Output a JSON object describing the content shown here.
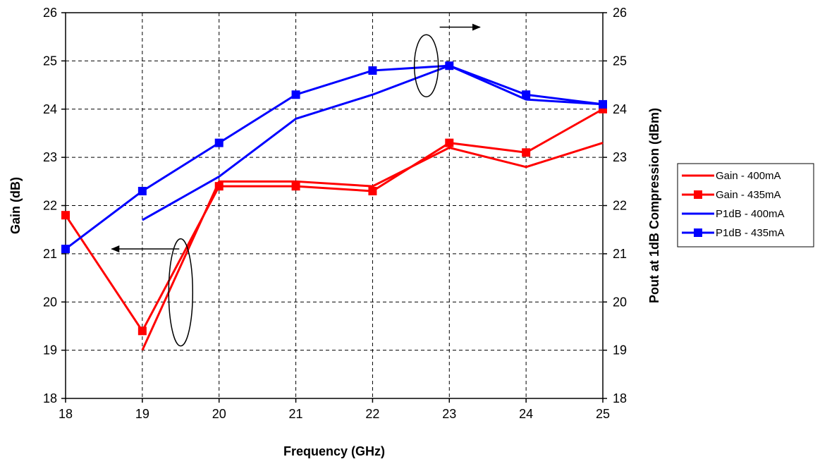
{
  "chart_data": {
    "type": "line",
    "xlabel": "Frequency (GHz)",
    "ylabel_left": "Gain (dB)",
    "ylabel_right": "Pout at 1dB Compression (dBm)",
    "x": [
      18,
      19,
      20,
      21,
      22,
      23,
      24,
      25
    ],
    "xlim": [
      18,
      25
    ],
    "ylim_left": [
      18,
      26
    ],
    "ylim_right": [
      18,
      26
    ],
    "x_ticks": [
      "18",
      "19",
      "20",
      "21",
      "22",
      "23",
      "24",
      "25"
    ],
    "y_ticks": [
      "18",
      "19",
      "20",
      "21",
      "22",
      "23",
      "24",
      "25",
      "26"
    ],
    "grid": true,
    "legend_position": "right",
    "series": [
      {
        "name": "Gain - 400mA",
        "axis": "left",
        "color": "#ff0000",
        "marker": "none",
        "values": [
          null,
          19.0,
          22.5,
          22.5,
          22.4,
          23.2,
          22.8,
          23.3
        ]
      },
      {
        "name": "Gain - 435mA",
        "axis": "left",
        "color": "#ff0000",
        "marker": "square",
        "values": [
          21.8,
          19.4,
          22.4,
          22.4,
          22.3,
          23.3,
          23.1,
          24.0
        ]
      },
      {
        "name": "P1dB - 400mA",
        "axis": "right",
        "color": "#0000ff",
        "marker": "none",
        "values": [
          null,
          21.7,
          22.6,
          23.8,
          24.3,
          24.9,
          24.2,
          24.1
        ]
      },
      {
        "name": "P1dB - 435mA",
        "axis": "right",
        "color": "#0000ff",
        "marker": "square",
        "values": [
          21.1,
          22.3,
          23.3,
          24.3,
          24.8,
          24.9,
          24.3,
          24.1
        ]
      }
    ],
    "annotations": [
      {
        "kind": "ellipse-with-arrow",
        "direction": "left",
        "target_axis": "left",
        "at_x": 19.5,
        "at_y": 20.2,
        "arrow_to": [
          18.6,
          21.1
        ]
      },
      {
        "kind": "ellipse-with-arrow",
        "direction": "right",
        "target_axis": "right",
        "at_x": 22.7,
        "at_y": 24.9,
        "arrow_to": [
          23.4,
          25.7
        ]
      }
    ]
  }
}
